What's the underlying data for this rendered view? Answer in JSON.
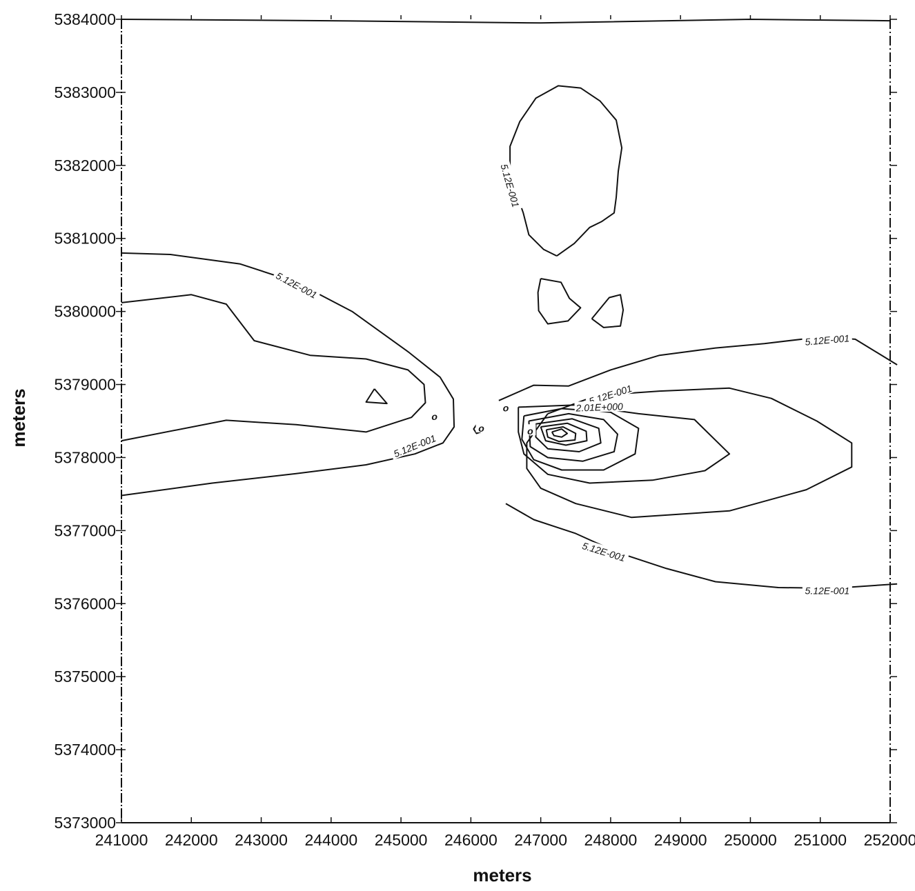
{
  "chart_data": {
    "type": "contour",
    "title": "",
    "xlabel": "meters",
    "ylabel": "meters",
    "xlim": [
      241000,
      252000
    ],
    "ylim": [
      5373000,
      5384000
    ],
    "x_ticks": [
      "241000",
      "242000",
      "243000",
      "244000",
      "245000",
      "246000",
      "247000",
      "248000",
      "249000",
      "250000",
      "251000",
      "252000"
    ],
    "y_ticks": [
      "5373000",
      "5374000",
      "5375000",
      "5376000",
      "5377000",
      "5378000",
      "5379000",
      "5380000",
      "5381000",
      "5382000",
      "5383000",
      "5384000"
    ],
    "grid": false,
    "contour_levels": [
      "5.12E-001",
      "2.01E+000"
    ],
    "contours": [
      {
        "name": "top-boundary",
        "level": "5.12E-001",
        "points": [
          [
            241000,
            5384000
          ],
          [
            244000,
            5383980
          ],
          [
            247000,
            5383950
          ],
          [
            250000,
            5384000
          ],
          [
            252000,
            5383980
          ]
        ]
      },
      {
        "name": "north-loop",
        "level": "5.12E-001",
        "points": [
          [
            247230,
            5380760
          ],
          [
            247040,
            5380850
          ],
          [
            246830,
            5381050
          ],
          [
            246750,
            5381350
          ],
          [
            246650,
            5381620
          ],
          [
            246560,
            5381930
          ],
          [
            246560,
            5382260
          ],
          [
            246700,
            5382600
          ],
          [
            246930,
            5382920
          ],
          [
            247250,
            5383090
          ],
          [
            247570,
            5383060
          ],
          [
            247850,
            5382880
          ],
          [
            248080,
            5382620
          ],
          [
            248160,
            5382240
          ],
          [
            248110,
            5381920
          ],
          [
            248080,
            5381560
          ],
          [
            248050,
            5381350
          ],
          [
            247870,
            5381230
          ],
          [
            247700,
            5381150
          ],
          [
            247480,
            5380930
          ],
          [
            247230,
            5380760
          ]
        ]
      },
      {
        "name": "small-blob-a",
        "level": "5.12E-001",
        "points": [
          [
            247000,
            5380450
          ],
          [
            247290,
            5380400
          ],
          [
            247410,
            5380180
          ],
          [
            247570,
            5380050
          ],
          [
            247390,
            5379870
          ],
          [
            247100,
            5379830
          ],
          [
            246970,
            5380010
          ],
          [
            246960,
            5380260
          ],
          [
            247000,
            5380450
          ]
        ]
      },
      {
        "name": "small-blob-b",
        "level": "5.12E-001",
        "points": [
          [
            247730,
            5379900
          ],
          [
            247980,
            5380190
          ],
          [
            248140,
            5380230
          ],
          [
            248180,
            5380020
          ],
          [
            248140,
            5379800
          ],
          [
            247900,
            5379780
          ],
          [
            247730,
            5379900
          ]
        ]
      },
      {
        "name": "west-outer",
        "level": "5.12E-001",
        "points": [
          [
            241000,
            5380800
          ],
          [
            241700,
            5380780
          ],
          [
            242700,
            5380650
          ],
          [
            243500,
            5380400
          ],
          [
            244300,
            5380000
          ],
          [
            245100,
            5379450
          ],
          [
            245560,
            5379100
          ],
          [
            245750,
            5378800
          ],
          [
            245760,
            5378420
          ],
          [
            245600,
            5378200
          ],
          [
            245200,
            5378050
          ],
          [
            244500,
            5377900
          ],
          [
            243500,
            5377780
          ],
          [
            242300,
            5377650
          ],
          [
            241000,
            5377480
          ]
        ]
      },
      {
        "name": "west-inner",
        "level": "5.12E-001",
        "points": [
          [
            241000,
            5380120
          ],
          [
            242000,
            5380230
          ],
          [
            242500,
            5380100
          ],
          [
            242900,
            5379600
          ],
          [
            243700,
            5379400
          ],
          [
            244500,
            5379350
          ],
          [
            245100,
            5379200
          ],
          [
            245330,
            5379000
          ],
          [
            245350,
            5378750
          ],
          [
            245150,
            5378550
          ],
          [
            244500,
            5378350
          ],
          [
            243500,
            5378450
          ],
          [
            242500,
            5378510
          ],
          [
            241000,
            5378230
          ]
        ]
      },
      {
        "name": "west-small-triangle",
        "level": "5.12E-001",
        "points": [
          [
            244620,
            5378940
          ],
          [
            244800,
            5378740
          ],
          [
            244500,
            5378760
          ],
          [
            244620,
            5378940
          ]
        ]
      },
      {
        "name": "east-outer",
        "level": "5.12E-001",
        "points": [
          [
            246400,
            5378780
          ],
          [
            246900,
            5378990
          ],
          [
            247400,
            5378980
          ],
          [
            248000,
            5379200
          ],
          [
            248700,
            5379400
          ],
          [
            249500,
            5379500
          ],
          [
            250200,
            5379560
          ],
          [
            251000,
            5379650
          ],
          [
            251500,
            5379620
          ],
          [
            252100,
            5379270
          ]
        ]
      },
      {
        "name": "east-lower",
        "level": "5.12E-001",
        "points": [
          [
            246500,
            5377370
          ],
          [
            246900,
            5377150
          ],
          [
            247500,
            5376960
          ],
          [
            248100,
            5376700
          ],
          [
            248800,
            5376480
          ],
          [
            249500,
            5376300
          ],
          [
            250400,
            5376220
          ],
          [
            251200,
            5376210
          ],
          [
            252100,
            5376270
          ]
        ]
      },
      {
        "name": "east-mid",
        "level": "5.12E-001",
        "points": [
          [
            247100,
            5378600
          ],
          [
            247800,
            5378850
          ],
          [
            248700,
            5378910
          ],
          [
            249700,
            5378950
          ],
          [
            250300,
            5378810
          ],
          [
            250950,
            5378500
          ],
          [
            251450,
            5378200
          ],
          [
            251450,
            5377870
          ],
          [
            250800,
            5377560
          ],
          [
            249700,
            5377270
          ],
          [
            248300,
            5377180
          ],
          [
            247500,
            5377370
          ],
          [
            247000,
            5377580
          ],
          [
            246800,
            5377850
          ],
          [
            246800,
            5378200
          ],
          [
            247100,
            5378600
          ]
        ]
      },
      {
        "name": "east-inner-1",
        "level": "",
        "points": [
          [
            246680,
            5378690
          ],
          [
            247500,
            5378720
          ],
          [
            248400,
            5378600
          ],
          [
            249200,
            5378520
          ],
          [
            249700,
            5378050
          ],
          [
            249350,
            5377820
          ],
          [
            248600,
            5377690
          ],
          [
            247700,
            5377650
          ],
          [
            247100,
            5377770
          ],
          [
            246760,
            5378050
          ],
          [
            246680,
            5378350
          ],
          [
            246680,
            5378690
          ]
        ]
      },
      {
        "name": "east-inner-2",
        "level": "",
        "points": [
          [
            246760,
            5378570
          ],
          [
            247300,
            5378670
          ],
          [
            248000,
            5378620
          ],
          [
            248400,
            5378400
          ],
          [
            248350,
            5378050
          ],
          [
            247900,
            5377830
          ],
          [
            247300,
            5377830
          ],
          [
            246900,
            5377970
          ],
          [
            246730,
            5378250
          ],
          [
            246760,
            5378570
          ]
        ]
      },
      {
        "name": "east-inner-3",
        "level": "",
        "points": [
          [
            246830,
            5378500
          ],
          [
            247400,
            5378600
          ],
          [
            247900,
            5378520
          ],
          [
            248100,
            5378320
          ],
          [
            248050,
            5378080
          ],
          [
            247600,
            5377950
          ],
          [
            247100,
            5378000
          ],
          [
            246850,
            5378150
          ],
          [
            246830,
            5378500
          ]
        ]
      },
      {
        "name": "east-inner-4",
        "level": "",
        "points": [
          [
            246930,
            5378460
          ],
          [
            247450,
            5378530
          ],
          [
            247830,
            5378400
          ],
          [
            247860,
            5378200
          ],
          [
            247550,
            5378080
          ],
          [
            247100,
            5378120
          ],
          [
            246930,
            5378280
          ],
          [
            246930,
            5378460
          ]
        ]
      },
      {
        "name": "east-inner-5",
        "level": "",
        "points": [
          [
            247000,
            5378420
          ],
          [
            247380,
            5378470
          ],
          [
            247650,
            5378360
          ],
          [
            247660,
            5378230
          ],
          [
            247360,
            5378170
          ],
          [
            247070,
            5378230
          ],
          [
            247000,
            5378420
          ]
        ]
      },
      {
        "name": "east-inner-6",
        "level": "2.01E+000",
        "points": [
          [
            247080,
            5378380
          ],
          [
            247320,
            5378420
          ],
          [
            247500,
            5378330
          ],
          [
            247490,
            5378240
          ],
          [
            247260,
            5378220
          ],
          [
            247100,
            5378280
          ],
          [
            247080,
            5378380
          ]
        ]
      },
      {
        "name": "east-peak",
        "level": "",
        "points": [
          [
            247160,
            5378350
          ],
          [
            247300,
            5378390
          ],
          [
            247380,
            5378330
          ],
          [
            247300,
            5378280
          ],
          [
            247190,
            5378300
          ],
          [
            247160,
            5378350
          ]
        ]
      },
      {
        "name": "center-tiny-circle",
        "level": "0",
        "points": [
          [
            246080,
            5378450
          ],
          [
            246140,
            5378430
          ],
          [
            246140,
            5378350
          ],
          [
            246080,
            5378330
          ],
          [
            246040,
            5378390
          ],
          [
            246080,
            5378450
          ]
        ]
      }
    ],
    "contour_labels": [
      {
        "text": "5.12E-001",
        "x": 243500,
        "y": 5380350,
        "angle": 28
      },
      {
        "text": "5.12E-001",
        "x": 245200,
        "y": 5378150,
        "angle": -22
      },
      {
        "text": "5.12E-001",
        "x": 246550,
        "y": 5381720,
        "angle": 74
      },
      {
        "text": "5.12E-001",
        "x": 248000,
        "y": 5378850,
        "angle": -18
      },
      {
        "text": "5.12E-001",
        "x": 251100,
        "y": 5379600,
        "angle": -5
      },
      {
        "text": "5.12E-001",
        "x": 247900,
        "y": 5376700,
        "angle": 17
      },
      {
        "text": "5.12E-001",
        "x": 251100,
        "y": 5376170,
        "angle": 0
      },
      {
        "text": "2.01E+000",
        "x": 247840,
        "y": 5378680,
        "angle": -2
      }
    ],
    "markers": [
      {
        "label": "o",
        "x": 245480,
        "y": 5378580
      },
      {
        "label": "o",
        "x": 246150,
        "y": 5378420
      },
      {
        "label": "o",
        "x": 246500,
        "y": 5378700
      },
      {
        "label": "o",
        "x": 246850,
        "y": 5378380
      }
    ]
  }
}
